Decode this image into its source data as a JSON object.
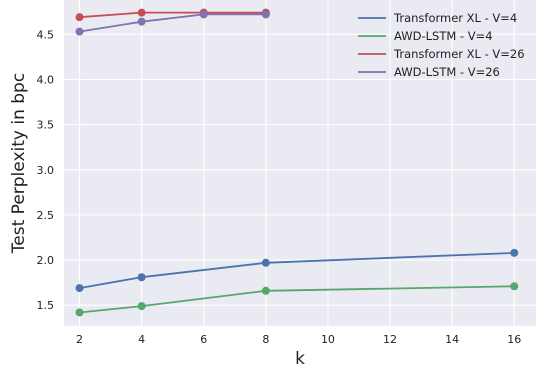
{
  "chart_data": {
    "type": "line",
    "title": "",
    "xlabel": "k",
    "ylabel": "Test Perplexity in bpc",
    "xlim": [
      1.5,
      16.7
    ],
    "ylim": [
      1.27,
      4.88
    ],
    "xticks": [
      2,
      4,
      6,
      8,
      10,
      12,
      14,
      16
    ],
    "yticks": [
      1.5,
      2.0,
      2.5,
      3.0,
      3.5,
      4.0,
      4.5
    ],
    "grid": true,
    "legend_position": "top-right",
    "series": [
      {
        "name": "Transformer XL - V=4",
        "color": "#4c72b0",
        "x": [
          2,
          4,
          8,
          16
        ],
        "y": [
          1.69,
          1.81,
          1.97,
          2.08
        ]
      },
      {
        "name": "AWD-LSTM - V=4",
        "color": "#55a868",
        "x": [
          2,
          4,
          8,
          16
        ],
        "y": [
          1.42,
          1.49,
          1.66,
          1.71
        ]
      },
      {
        "name": "Transformer XL - V=26",
        "color": "#c44e52",
        "x": [
          2,
          4,
          6,
          8
        ],
        "y": [
          4.69,
          4.74,
          4.74,
          4.74
        ]
      },
      {
        "name": "AWD-LSTM - V=26",
        "color": "#8172b2",
        "x": [
          2,
          4,
          6,
          8
        ],
        "y": [
          4.53,
          4.64,
          4.72,
          4.72
        ]
      }
    ]
  }
}
